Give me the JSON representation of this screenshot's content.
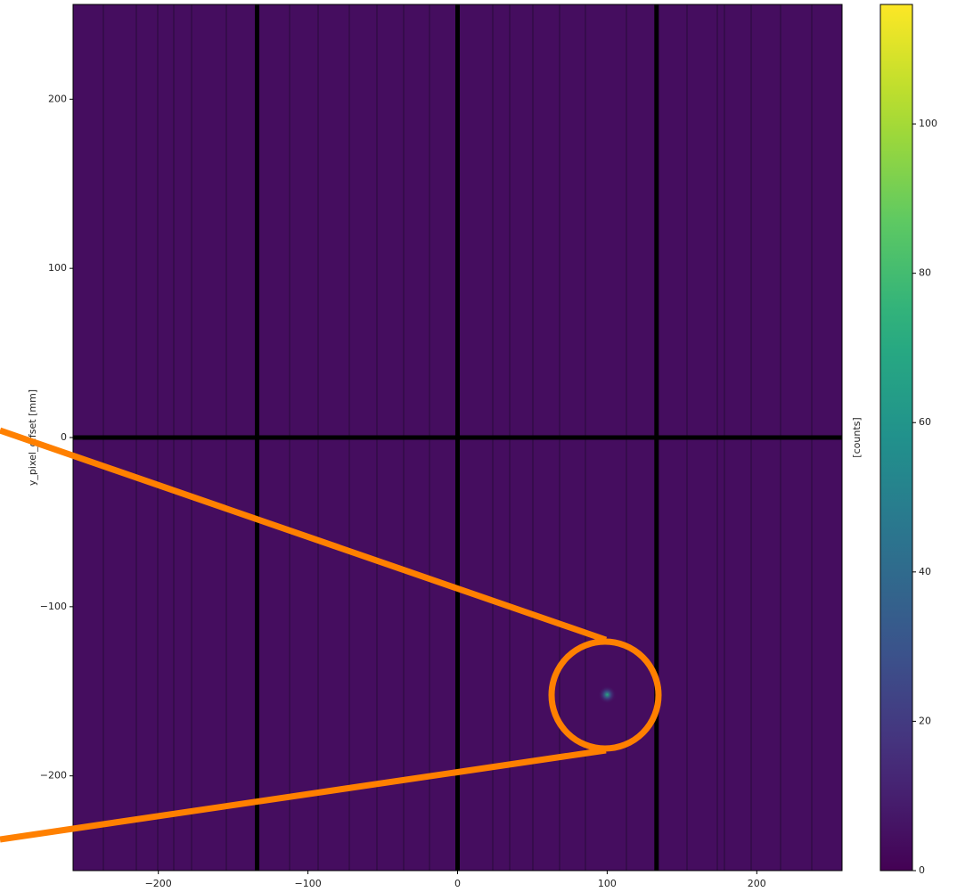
{
  "chart_data": {
    "type": "heatmap",
    "colormap": "viridis",
    "ylabel": "y_pixel_offset [mm]",
    "colorbar_label": "[counts]",
    "xlim": [
      -257,
      257
    ],
    "ylim": [
      -256,
      256
    ],
    "xticks": [
      {
        "value": -200,
        "label": "−200"
      },
      {
        "value": -100,
        "label": "−100"
      },
      0,
      100,
      200
    ],
    "yticks": [
      {
        "value": -200,
        "label": "−200"
      },
      {
        "value": -100,
        "label": "−100"
      },
      0,
      100,
      200
    ],
    "clim": [
      0,
      116
    ],
    "cticks": [
      0,
      20,
      40,
      60,
      80,
      100
    ],
    "background": 4,
    "spot": {
      "x": 100,
      "y": -152,
      "peak": 70
    },
    "gaps": {
      "x": [
        -134,
        0,
        133
      ],
      "y": [
        0
      ]
    }
  }
}
